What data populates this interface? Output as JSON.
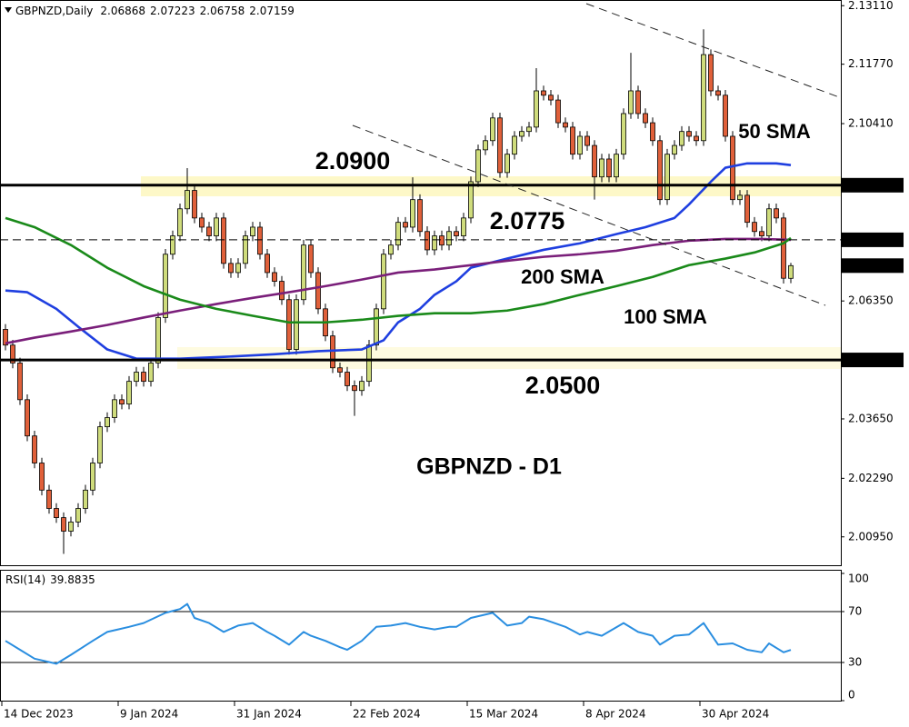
{
  "chart_data": {
    "type": "candlestick",
    "symbol_label": "GBPNZD,Daily",
    "title": "GBPNZD - D1",
    "bull_color": "#cfdc7c",
    "bear_color": "#e0603a",
    "categories": [
      "14 Dec 2023",
      null,
      null,
      null,
      null,
      null,
      null,
      null,
      null,
      null,
      null,
      null,
      null,
      null,
      null,
      null,
      "9 Jan 2024",
      null,
      null,
      null,
      null,
      null,
      null,
      null,
      null,
      null,
      null,
      null,
      null,
      null,
      null,
      null,
      "31 Jan 2024",
      null,
      null,
      null,
      null,
      null,
      null,
      null,
      null,
      null,
      null,
      null,
      null,
      null,
      null,
      null,
      "22 Feb 2024",
      null,
      null,
      null,
      null,
      null,
      null,
      null,
      null,
      null,
      null,
      null,
      null,
      null,
      null,
      null,
      "15 Mar 2024",
      null,
      null,
      null,
      null,
      null,
      null,
      null,
      null,
      null,
      null,
      null,
      null,
      null,
      null,
      null,
      "8 Apr 2024",
      null,
      null,
      null,
      null,
      null,
      null,
      null,
      null,
      null,
      null,
      null,
      null,
      null,
      null,
      null,
      "30 Apr 2024",
      null,
      null,
      null,
      null,
      null,
      null,
      null,
      null,
      null,
      null,
      null,
      null
    ],
    "open": [
      2.057,
      2.0534,
      2.0493,
      2.0409,
      2.0326,
      2.0264,
      2.0202,
      2.016,
      2.0139,
      2.0108,
      2.0129,
      2.016,
      2.0202,
      2.0264,
      2.0347,
      2.0368,
      2.0409,
      2.0399,
      2.0451,
      2.0472,
      2.0451,
      2.0493,
      2.0597,
      2.0742,
      2.0784,
      2.0846,
      2.0888,
      2.0825,
      2.0804,
      2.0784,
      2.0825,
      2.0721,
      2.07,
      2.0721,
      2.0784,
      2.0804,
      2.0742,
      2.07,
      2.068,
      2.0638,
      2.0524,
      2.0638,
      2.0763,
      2.07,
      2.0617,
      2.0555,
      2.0482,
      2.0472,
      2.0441,
      2.043,
      2.0451,
      2.0534,
      2.0617,
      2.0742,
      2.0763,
      2.0815,
      2.0804,
      2.0867,
      2.0794,
      2.0752,
      2.0784,
      2.0763,
      2.0794,
      2.0784,
      2.0825,
      2.0908,
      2.0981,
      2.1002,
      2.1054,
      2.0929,
      2.0971,
      2.1012,
      2.1023,
      2.1033,
      2.1116,
      2.1106,
      2.1095,
      2.1043,
      2.1033,
      2.0971,
      2.1012,
      2.0991,
      2.0919,
      2.096,
      2.0919,
      2.0971,
      2.1064,
      2.1116,
      2.1064,
      2.1043,
      2.1002,
      2.0867,
      2.0971,
      2.0991,
      2.1023,
      2.1012,
      2.1002,
      2.1199,
      2.1116,
      2.1106,
      2.1012,
      2.0867,
      2.0877,
      2.0815,
      2.0794,
      2.0784,
      2.0846,
      2.0825,
      2.06868
    ],
    "high": [
      2.0582,
      2.0546,
      2.0505,
      2.0421,
      2.0338,
      2.0276,
      2.0214,
      2.0172,
      2.0151,
      2.0141,
      2.0172,
      2.0214,
      2.0276,
      2.0359,
      2.038,
      2.0421,
      2.0421,
      2.0463,
      2.0484,
      2.0484,
      2.0505,
      2.0609,
      2.0754,
      2.0796,
      2.0858,
      2.0939,
      2.09,
      2.0837,
      2.0816,
      2.0837,
      2.0837,
      2.0733,
      2.0733,
      2.0796,
      2.0816,
      2.0816,
      2.0754,
      2.0712,
      2.0692,
      2.065,
      2.065,
      2.0775,
      2.0775,
      2.0712,
      2.0629,
      2.0567,
      2.0494,
      2.0484,
      2.0453,
      2.0463,
      2.0546,
      2.0629,
      2.0754,
      2.0775,
      2.0827,
      2.0827,
      2.0918,
      2.0879,
      2.0806,
      2.0796,
      2.0796,
      2.0806,
      2.0806,
      2.0837,
      2.092,
      2.0993,
      2.1014,
      2.1066,
      2.1066,
      2.0983,
      2.1024,
      2.1035,
      2.1045,
      2.1168,
      2.1128,
      2.1118,
      2.1107,
      2.1055,
      2.1045,
      2.1024,
      2.1024,
      2.1003,
      2.0972,
      2.0972,
      2.0983,
      2.1076,
      2.1203,
      2.1128,
      2.1076,
      2.1055,
      2.1014,
      2.0983,
      2.1003,
      2.1035,
      2.1035,
      2.1024,
      2.1257,
      2.1211,
      2.1128,
      2.1118,
      2.1024,
      2.0889,
      2.0889,
      2.0827,
      2.0806,
      2.0858,
      2.0858,
      2.0837,
      2.07223
    ],
    "low": [
      2.0522,
      2.0481,
      2.0397,
      2.0314,
      2.0252,
      2.019,
      2.0148,
      2.0127,
      2.0056,
      2.0096,
      2.0117,
      2.0148,
      2.019,
      2.0252,
      2.0335,
      2.0356,
      2.0387,
      2.0387,
      2.0439,
      2.0439,
      2.0439,
      2.0481,
      2.0585,
      2.073,
      2.0772,
      2.0834,
      2.0813,
      2.0792,
      2.0772,
      2.0772,
      2.0709,
      2.0688,
      2.0688,
      2.0709,
      2.0772,
      2.073,
      2.0688,
      2.0668,
      2.0626,
      2.0512,
      2.0512,
      2.0626,
      2.0688,
      2.0605,
      2.0543,
      2.047,
      2.046,
      2.0429,
      2.0372,
      2.0418,
      2.0439,
      2.0522,
      2.0605,
      2.073,
      2.0751,
      2.0792,
      2.0792,
      2.0782,
      2.074,
      2.074,
      2.0751,
      2.0751,
      2.0772,
      2.0772,
      2.0813,
      2.0896,
      2.0969,
      2.099,
      2.0917,
      2.0917,
      2.0959,
      2.1,
      2.1011,
      2.1021,
      2.1094,
      2.1083,
      2.1031,
      2.1021,
      2.0959,
      2.0959,
      2.0979,
      2.0867,
      2.0907,
      2.0907,
      2.0907,
      2.0959,
      2.1052,
      2.1052,
      2.1031,
      2.099,
      2.0855,
      2.0855,
      2.0959,
      2.0979,
      2.1,
      2.099,
      2.099,
      2.1104,
      2.1094,
      2.1,
      2.0855,
      2.0855,
      2.0803,
      2.0782,
      2.0772,
      2.0772,
      2.0813,
      2.0675,
      2.06758
    ],
    "close": [
      2.0534,
      2.0493,
      2.0409,
      2.0326,
      2.0264,
      2.0202,
      2.016,
      2.0139,
      2.0108,
      2.0129,
      2.016,
      2.0202,
      2.0264,
      2.0347,
      2.0368,
      2.0409,
      2.0399,
      2.0451,
      2.0472,
      2.0451,
      2.0493,
      2.0597,
      2.0742,
      2.0784,
      2.0846,
      2.0888,
      2.0825,
      2.0804,
      2.0784,
      2.0825,
      2.0721,
      2.07,
      2.0721,
      2.0784,
      2.0804,
      2.0742,
      2.07,
      2.068,
      2.0638,
      2.0524,
      2.0638,
      2.0763,
      2.07,
      2.0617,
      2.0555,
      2.0482,
      2.0472,
      2.0441,
      2.043,
      2.0451,
      2.0534,
      2.0617,
      2.0742,
      2.0763,
      2.0815,
      2.0804,
      2.0867,
      2.0794,
      2.0752,
      2.0784,
      2.0763,
      2.0794,
      2.0784,
      2.0825,
      2.0908,
      2.0981,
      2.1002,
      2.1054,
      2.0929,
      2.0971,
      2.1012,
      2.1023,
      2.1033,
      2.1116,
      2.1106,
      2.1095,
      2.1043,
      2.1033,
      2.0971,
      2.1012,
      2.0991,
      2.0919,
      2.096,
      2.0919,
      2.0971,
      2.1064,
      2.1116,
      2.1064,
      2.1043,
      2.1002,
      2.0867,
      2.0971,
      2.0991,
      2.1023,
      2.1012,
      2.1002,
      2.1199,
      2.1116,
      2.1106,
      2.1012,
      2.0867,
      2.0877,
      2.0815,
      2.0794,
      2.0784,
      2.0846,
      2.0825,
      2.0687,
      2.07159
    ],
    "ylim": [
      2.003,
      2.1324
    ],
    "yticks": [
      {
        "value": 2.1311,
        "label": "2.13110"
      },
      {
        "value": 2.1177,
        "label": "2.11770"
      },
      {
        "value": 2.1041,
        "label": "2.10410"
      },
      {
        "value": 2.0635,
        "label": "2.06350"
      },
      {
        "value": 2.0365,
        "label": "2.03650"
      },
      {
        "value": 2.0229,
        "label": "2.02290"
      },
      {
        "value": 2.0095,
        "label": "2.00950"
      }
    ],
    "last_price": 2.07159,
    "levels": [
      {
        "value": 2.09,
        "label": "2.09000",
        "text": "2.0900",
        "dash": false
      },
      {
        "value": 2.0775,
        "label": "2.07750",
        "text": "2.0775",
        "dash": true
      },
      {
        "value": 2.05,
        "label": "2.05000",
        "text": "2.0500",
        "dash": false
      }
    ],
    "series": [
      {
        "name": "50 SMA",
        "color": "#1f3fe0",
        "x": [
          0,
          3,
          7,
          10,
          14,
          18,
          24,
          30,
          37,
          43,
          49,
          52,
          54,
          57,
          59,
          62,
          64,
          69,
          74,
          79,
          84,
          88,
          92,
          94,
          97,
          99,
          102,
          106,
          108
        ],
        "values": [
          2.0659,
          2.0655,
          2.0617,
          2.0576,
          2.0524,
          2.0503,
          2.0503,
          2.0507,
          2.0513,
          2.052,
          2.0524,
          2.0545,
          2.0586,
          2.0617,
          2.0649,
          2.068,
          2.0711,
          2.0732,
          2.0752,
          2.0767,
          2.0788,
          2.0804,
          2.0825,
          2.0856,
          2.0908,
          2.094,
          2.095,
          2.095,
          2.0946
        ]
      },
      {
        "name": "200 SMA",
        "color": "#7a1f7a",
        "x": [
          0,
          4,
          9,
          14,
          19,
          24,
          29,
          34,
          39,
          44,
          49,
          54,
          59,
          64,
          69,
          74,
          79,
          84,
          89,
          94,
          99,
          104,
          108
        ],
        "values": [
          2.0538,
          2.0551,
          2.0565,
          2.058,
          2.0597,
          2.0613,
          2.0628,
          2.0642,
          2.0655,
          2.0669,
          2.0684,
          2.07,
          2.0707,
          2.0717,
          2.0727,
          2.0736,
          2.0742,
          2.075,
          2.0763,
          2.0773,
          2.0777,
          2.0777,
          2.0775
        ]
      },
      {
        "name": "100 SMA",
        "color": "#1a8a1a",
        "x": [
          0,
          4,
          9,
          14,
          19,
          24,
          29,
          34,
          39,
          44,
          49,
          54,
          59,
          64,
          69,
          74,
          79,
          84,
          89,
          94,
          99,
          103,
          107,
          108
        ],
        "values": [
          2.0825,
          2.0804,
          2.0763,
          2.0711,
          2.0669,
          2.0638,
          2.0617,
          2.0601,
          2.0586,
          2.0586,
          2.0592,
          2.0601,
          2.0607,
          2.0607,
          2.0613,
          2.0628,
          2.0649,
          2.0669,
          2.069,
          2.0717,
          2.0732,
          2.0746,
          2.0767,
          2.0779
        ]
      }
    ],
    "rsi": {
      "type": "line",
      "label": "RSI(14)",
      "color": "#2a8ee0",
      "ylim": [
        0,
        100
      ],
      "yticks": [
        0,
        30,
        70,
        100
      ],
      "levels": [
        30,
        70
      ],
      "x": [
        0,
        2,
        4,
        7,
        9,
        12,
        14,
        17,
        19,
        22,
        24,
        25,
        26,
        28,
        30,
        32,
        34,
        36,
        37,
        39,
        41,
        42,
        44,
        46,
        47,
        49,
        51,
        53,
        55,
        57,
        59,
        61,
        62,
        64,
        67,
        69,
        71,
        72,
        74,
        77,
        79,
        80,
        82,
        85,
        87,
        89,
        90,
        92,
        94,
        96,
        98,
        100,
        102,
        104,
        105,
        107,
        108
      ],
      "values": [
        47,
        40,
        33,
        29,
        36,
        47,
        54,
        58,
        61,
        69,
        72,
        76,
        65,
        61,
        54,
        59,
        61,
        54,
        51,
        44,
        54,
        51,
        47,
        42,
        40,
        47,
        58,
        59,
        61,
        58,
        56,
        58,
        58,
        65,
        69,
        59,
        61,
        66,
        64,
        58,
        52,
        54,
        51,
        61,
        54,
        51,
        44,
        51,
        52,
        61,
        44,
        45,
        40,
        38,
        45,
        38,
        39.8835
      ]
    }
  }
}
